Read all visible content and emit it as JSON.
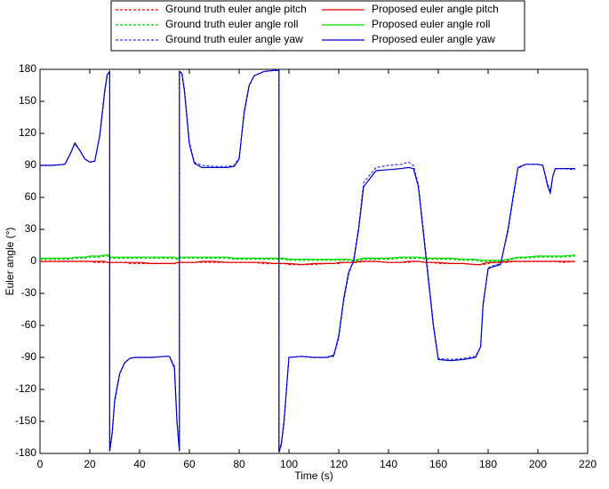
{
  "chart_data": {
    "type": "line",
    "xlabel": "Time (s)",
    "ylabel": "Euler angle (°)",
    "xlim": [
      0,
      220
    ],
    "xticks": [
      0,
      20,
      40,
      60,
      80,
      100,
      120,
      140,
      160,
      180,
      200,
      220
    ],
    "ylim": [
      -180,
      180
    ],
    "yticks": [
      -180,
      -150,
      -120,
      -90,
      -60,
      -30,
      0,
      30,
      60,
      90,
      120,
      150,
      180
    ],
    "grid": false,
    "legend": "top",
    "x": [
      0,
      5,
      10,
      12,
      14,
      16,
      18,
      20,
      22,
      24,
      26,
      27,
      28,
      28,
      29,
      30,
      32,
      34,
      36,
      38,
      40,
      45,
      50,
      52,
      54,
      55,
      56,
      56,
      57,
      58,
      60,
      62,
      65,
      70,
      75,
      78,
      80,
      82,
      84,
      86,
      90,
      94,
      95,
      96,
      96,
      97,
      98,
      100,
      105,
      110,
      115,
      118,
      120,
      122,
      124,
      126,
      128,
      130,
      135,
      140,
      145,
      148,
      150,
      152,
      155,
      158,
      160,
      165,
      170,
      175,
      177,
      178,
      180,
      182,
      185,
      188,
      190,
      192,
      195,
      200,
      202,
      204,
      205,
      206,
      207,
      210,
      215
    ],
    "series": [
      {
        "name": "Ground truth euler angle pitch",
        "color": "#ff0000",
        "dashed": true,
        "values": [
          0,
          0,
          0,
          0,
          0,
          0,
          0,
          0,
          -1,
          -1,
          -1,
          -1,
          -1,
          -1,
          -1,
          -1,
          -1,
          -1,
          -2,
          -2,
          -2,
          -2,
          -2,
          -2,
          -2,
          -2,
          -1,
          -1,
          -1,
          -1,
          -1,
          -1,
          -1,
          -1,
          -1,
          -1,
          -1,
          -1,
          -1,
          -1,
          -2,
          -2,
          -2,
          -2,
          -2,
          -2,
          -2,
          -3,
          -3,
          -3,
          -2,
          -2,
          -2,
          -1,
          -1,
          -1,
          -1,
          0,
          0,
          -1,
          -1,
          -1,
          0,
          0,
          -1,
          -1,
          -2,
          -2,
          -2,
          -3,
          -3,
          -3,
          -2,
          -1,
          -1,
          -1,
          0,
          0,
          0,
          0,
          0,
          0,
          0,
          0,
          0,
          -1,
          0
        ]
      },
      {
        "name": "Ground truth euler angle roll",
        "color": "#00cc00",
        "dashed": true,
        "values": [
          2,
          2,
          2,
          2,
          3,
          3,
          3,
          4,
          4,
          4,
          5,
          5,
          5,
          3,
          3,
          3,
          3,
          3,
          3,
          3,
          3,
          3,
          3,
          3,
          3,
          2,
          2,
          3,
          3,
          3,
          3,
          3,
          3,
          3,
          3,
          2,
          2,
          2,
          2,
          2,
          2,
          2,
          2,
          2,
          2,
          2,
          2,
          1,
          1,
          1,
          1,
          1,
          1,
          1,
          1,
          0,
          1,
          2,
          2,
          2,
          3,
          3,
          3,
          3,
          2,
          2,
          2,
          2,
          1,
          1,
          0,
          0,
          0,
          0,
          0,
          1,
          2,
          3,
          3,
          4,
          4,
          4,
          4,
          4,
          4,
          4,
          5
        ]
      },
      {
        "name": "Ground truth euler angle yaw",
        "color": "#3333ff",
        "dashed": true,
        "values": [
          90,
          90,
          91,
          100,
          110,
          104,
          96,
          93,
          94,
          117,
          158,
          174,
          178,
          -178,
          -162,
          -132,
          -106,
          -95,
          -91,
          -90,
          -90,
          -90,
          -89,
          -89,
          -98,
          -148,
          -178,
          178,
          177,
          162,
          112,
          93,
          90,
          89,
          89,
          90,
          97,
          138,
          164,
          174,
          178,
          179,
          179,
          179,
          -179,
          -172,
          -152,
          -90,
          -89,
          -90,
          -90,
          -89,
          -72,
          -37,
          -12,
          2,
          32,
          74,
          88,
          90,
          91,
          93,
          90,
          72,
          8,
          -58,
          -91,
          -92,
          -91,
          -89,
          -80,
          -42,
          -6,
          -4,
          -2,
          28,
          58,
          87,
          91,
          91,
          90,
          72,
          66,
          80,
          87,
          87,
          86
        ]
      },
      {
        "name": "Proposed euler angle pitch",
        "color": "#dd0000",
        "dashed": false,
        "values": [
          0,
          0,
          0,
          0,
          0,
          0,
          0,
          0,
          0,
          0,
          0,
          -1,
          -1,
          -1,
          -1,
          -1,
          -1,
          -1,
          -1,
          -1,
          -1,
          -2,
          -2,
          -2,
          -2,
          -1,
          -1,
          -1,
          -1,
          -1,
          -1,
          -1,
          0,
          0,
          -1,
          -1,
          -1,
          -1,
          -1,
          -1,
          -1,
          -2,
          -2,
          -2,
          -2,
          -2,
          -2,
          -2,
          -3,
          -2,
          -2,
          -2,
          -1,
          -1,
          -1,
          -1,
          0,
          0,
          0,
          -1,
          -1,
          0,
          0,
          0,
          -1,
          -1,
          -1,
          -2,
          -2,
          -3,
          -3,
          -2,
          -1,
          -1,
          -1,
          0,
          0,
          0,
          0,
          0,
          0,
          0,
          0,
          0,
          0,
          0,
          0
        ]
      },
      {
        "name": "Proposed euler angle roll",
        "color": "#00dd00",
        "dashed": false,
        "values": [
          3,
          3,
          3,
          3,
          4,
          4,
          4,
          5,
          5,
          5,
          6,
          6,
          6,
          4,
          4,
          4,
          4,
          4,
          4,
          4,
          4,
          4,
          4,
          4,
          4,
          3,
          3,
          4,
          4,
          4,
          4,
          4,
          4,
          4,
          4,
          3,
          3,
          3,
          3,
          3,
          3,
          3,
          3,
          3,
          3,
          3,
          3,
          2,
          2,
          2,
          2,
          2,
          2,
          2,
          2,
          1,
          2,
          3,
          3,
          3,
          4,
          4,
          4,
          4,
          3,
          3,
          3,
          3,
          2,
          2,
          1,
          1,
          1,
          1,
          1,
          2,
          3,
          4,
          4,
          5,
          5,
          5,
          5,
          5,
          5,
          5,
          6
        ]
      },
      {
        "name": "Proposed euler angle yaw",
        "color": "#0000cc",
        "dashed": false,
        "values": [
          90,
          90,
          91,
          100,
          111,
          104,
          96,
          93,
          94,
          118,
          160,
          175,
          178,
          -178,
          -160,
          -130,
          -105,
          -95,
          -91,
          -90,
          -90,
          -90,
          -89,
          -89,
          -100,
          -150,
          -178,
          178,
          176,
          160,
          110,
          92,
          88,
          88,
          88,
          89,
          96,
          140,
          165,
          174,
          178,
          179,
          179,
          179,
          -179,
          -170,
          -150,
          -90,
          -89,
          -90,
          -90,
          -88,
          -70,
          -35,
          -10,
          0,
          30,
          70,
          85,
          86,
          87,
          88,
          87,
          70,
          5,
          -60,
          -92,
          -93,
          -92,
          -90,
          -80,
          -40,
          -7,
          -5,
          -3,
          30,
          60,
          88,
          91,
          91,
          90,
          70,
          64,
          80,
          87,
          87,
          87
        ]
      }
    ]
  }
}
